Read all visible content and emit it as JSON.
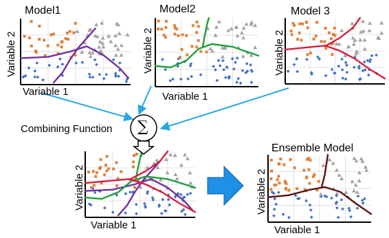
{
  "panels": [
    {
      "title": "Model1",
      "xlabel": "Variable 1",
      "ylabel": "Variable 2"
    },
    {
      "title": "Model2",
      "xlabel": "Variable 1",
      "ylabel": "Variable 2"
    },
    {
      "title": "Model 3",
      "xlabel": "",
      "ylabel": "Variable 2"
    },
    {
      "title": "",
      "xlabel": "Variable 1",
      "ylabel": "Variable 2"
    },
    {
      "title": "Ensemble Model",
      "xlabel": "Variable 1",
      "ylabel": "Variable 2"
    }
  ],
  "combining_label": "Combining Function",
  "sum_symbol": "∑",
  "colors": {
    "square": "#e0813a",
    "triangle": "#a3a3a3",
    "diamond": "#4472c4",
    "arrow_line": "#29a8e0",
    "big_arrow": "#1e90e6",
    "model1_curve": "#7030a0",
    "model2_curve": "#1e9e3c",
    "model3_curve": "#d61e3c",
    "ensemble_curve": "#5a1010"
  }
}
